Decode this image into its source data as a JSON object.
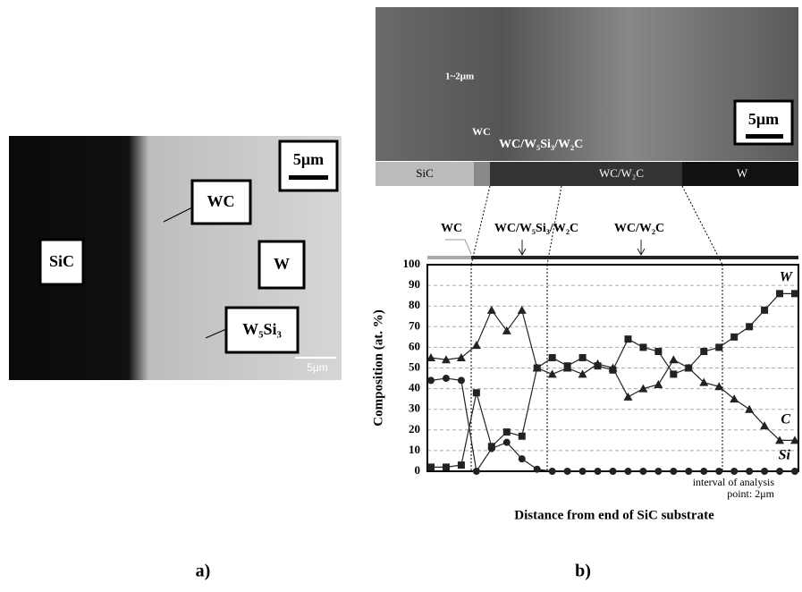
{
  "panel_a": {
    "labels": [
      "SiC",
      "WC",
      "W",
      "W₅Si₃"
    ],
    "scale_bar": "5μm",
    "scale_note": "5μm",
    "caption": "a)"
  },
  "panel_b": {
    "image_labels": [
      "1~2μm",
      "WC",
      "WC/W₅Si₃/W₂C"
    ],
    "scale_bar": "5μm",
    "bands": [
      "SiC",
      "WC/W₂C",
      "W"
    ],
    "caption": "b)"
  },
  "chart_data": {
    "type": "line",
    "annotations": [
      "WC",
      "WC/W₅Si₃/W₂C",
      "WC/W₂C"
    ],
    "ylabel": "Composition (at. %)",
    "xlabel": "Distance from end of SiC substrate",
    "note": [
      "interval of analysis",
      "point: 2μm"
    ],
    "categories": [
      null,
      null,
      null,
      null,
      null,
      null,
      null,
      null,
      null,
      null,
      null,
      null,
      null,
      null,
      null,
      null,
      null,
      null,
      null,
      null,
      null,
      null,
      null,
      null,
      null
    ],
    "series": [
      {
        "name": "W",
        "color": "#222222",
        "marker": "square",
        "values": [
          2,
          2,
          3,
          38,
          12,
          19,
          17,
          50,
          55,
          51,
          55,
          51,
          49,
          64,
          60,
          58,
          47,
          50,
          58,
          60,
          65,
          70,
          78,
          86,
          86
        ]
      },
      {
        "name": "C",
        "color": "#222222",
        "marker": "triangle",
        "values": [
          55,
          54,
          55,
          61,
          78,
          68,
          78,
          50,
          47,
          50,
          47,
          52,
          50,
          36,
          40,
          42,
          54,
          50,
          43,
          41,
          35,
          30,
          22,
          15,
          15
        ]
      },
      {
        "name": "Si",
        "color": "#222222",
        "marker": "circle",
        "values": [
          44,
          45,
          44,
          0,
          11,
          14,
          6,
          1,
          0,
          0,
          0,
          0,
          0,
          0,
          0,
          0,
          0,
          0,
          0,
          0,
          0,
          0,
          0,
          0,
          0
        ]
      }
    ],
    "ylim": [
      0,
      100
    ],
    "yticks": [
      0,
      10,
      20,
      30,
      40,
      50,
      60,
      70,
      80,
      90,
      100
    ],
    "grid": true
  }
}
